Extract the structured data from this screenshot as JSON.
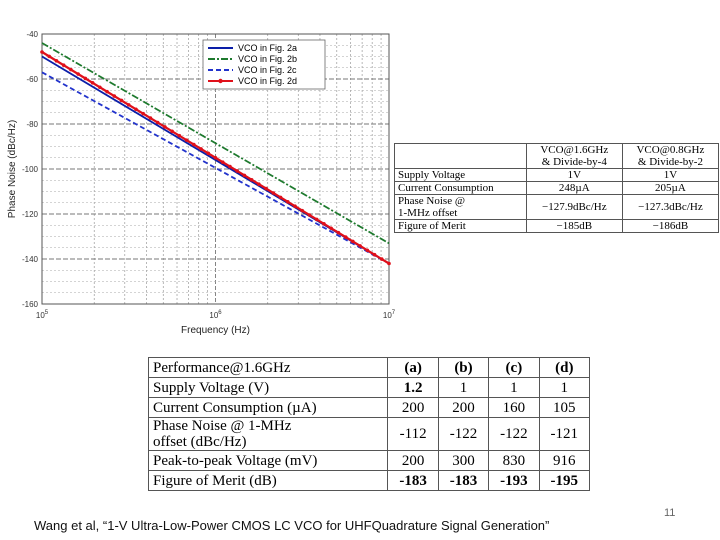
{
  "chart_data": {
    "type": "line",
    "xlabel": "Frequency (Hz)",
    "ylabel": "Phase Noise (dBc/Hz)",
    "xscale": "log",
    "xlim": [
      100000,
      10000000
    ],
    "ylim": [
      -160,
      -40
    ],
    "x_ticks": [
      {
        "value": 100000,
        "base": "10",
        "exp": "5"
      },
      {
        "value": 1000000,
        "base": "10",
        "exp": "6"
      },
      {
        "value": 10000000,
        "base": "10",
        "exp": "7"
      }
    ],
    "y_ticks": [
      {
        "value": -40,
        "label": "-40"
      },
      {
        "value": -60,
        "label": "-60"
      },
      {
        "value": -80,
        "label": "-80"
      },
      {
        "value": -100,
        "label": "-100"
      },
      {
        "value": -120,
        "label": "-120"
      },
      {
        "value": -140,
        "label": "-140"
      },
      {
        "value": -160,
        "label": "-160"
      }
    ],
    "grid": true,
    "legend_position": "top-right",
    "series": [
      {
        "name": "VCO in Fig. 2a",
        "color": "#0b1ea8",
        "style": "solid",
        "x": [
          100000,
          10000000
        ],
        "y": [
          -50,
          -142
        ]
      },
      {
        "name": "VCO in Fig. 2b",
        "color": "#1e7a2e",
        "style": "dashdot",
        "x": [
          100000,
          10000000
        ],
        "y": [
          -44,
          -133
        ]
      },
      {
        "name": "VCO in Fig. 2c",
        "color": "#2233cc",
        "style": "dashed",
        "x": [
          100000,
          10000000
        ],
        "y": [
          -57,
          -142
        ]
      },
      {
        "name": "VCO in Fig. 2d",
        "color": "#e0101a",
        "style": "solid-marker",
        "x": [
          100000,
          10000000
        ],
        "y": [
          -48,
          -142
        ]
      }
    ]
  },
  "right_table": {
    "col1": [
      "VCO@1.6GHz",
      "& Divide-by-4"
    ],
    "col2": [
      "VCO@0.8GHz",
      "& Divide-by-2"
    ],
    "rows": [
      {
        "label": [
          "Supply Voltage"
        ],
        "v1": "1V",
        "v2": "1V"
      },
      {
        "label": [
          "Current Consumption"
        ],
        "v1": "248µA",
        "v2": "205µA"
      },
      {
        "label": [
          "Phase Noise @",
          "1-MHz offset"
        ],
        "v1": "−127.9dBc/Hz",
        "v2": "−127.3dBc/Hz"
      },
      {
        "label": [
          "Figure of Merit"
        ],
        "v1": "−185dB",
        "v2": "−186dB"
      }
    ]
  },
  "bottom_table": {
    "header": {
      "label": "Performance@1.6GHz",
      "cols": [
        "(a)",
        "(b)",
        "(c)",
        "(d)"
      ]
    },
    "rows": [
      {
        "label": [
          "Supply Voltage (V)"
        ],
        "values": [
          "1.2",
          "1",
          "1",
          "1"
        ],
        "bold": [
          true,
          false,
          false,
          false
        ]
      },
      {
        "label": [
          "Current Consumption (µA)"
        ],
        "values": [
          "200",
          "200",
          "160",
          "105"
        ],
        "bold": [
          false,
          false,
          false,
          false
        ]
      },
      {
        "label": [
          "Phase Noise @ 1-MHz",
          "offset (dBc/Hz)"
        ],
        "values": [
          "-112",
          "-122",
          "-122",
          "-121"
        ],
        "bold": [
          false,
          false,
          false,
          false
        ]
      },
      {
        "label": [
          "Peak-to-peak Voltage (mV)"
        ],
        "values": [
          "200",
          "300",
          "830",
          "916"
        ],
        "bold": [
          false,
          false,
          false,
          false
        ]
      },
      {
        "label": [
          "Figure of Merit (dB)"
        ],
        "values": [
          "-183",
          "-183",
          "-193",
          "-195"
        ],
        "bold": [
          true,
          true,
          true,
          true
        ]
      }
    ]
  },
  "caption": "Wang et al, “1-V Ultra-Low-Power CMOS LC VCO for UHFQuadrature Signal Generation”",
  "page_number": "11"
}
